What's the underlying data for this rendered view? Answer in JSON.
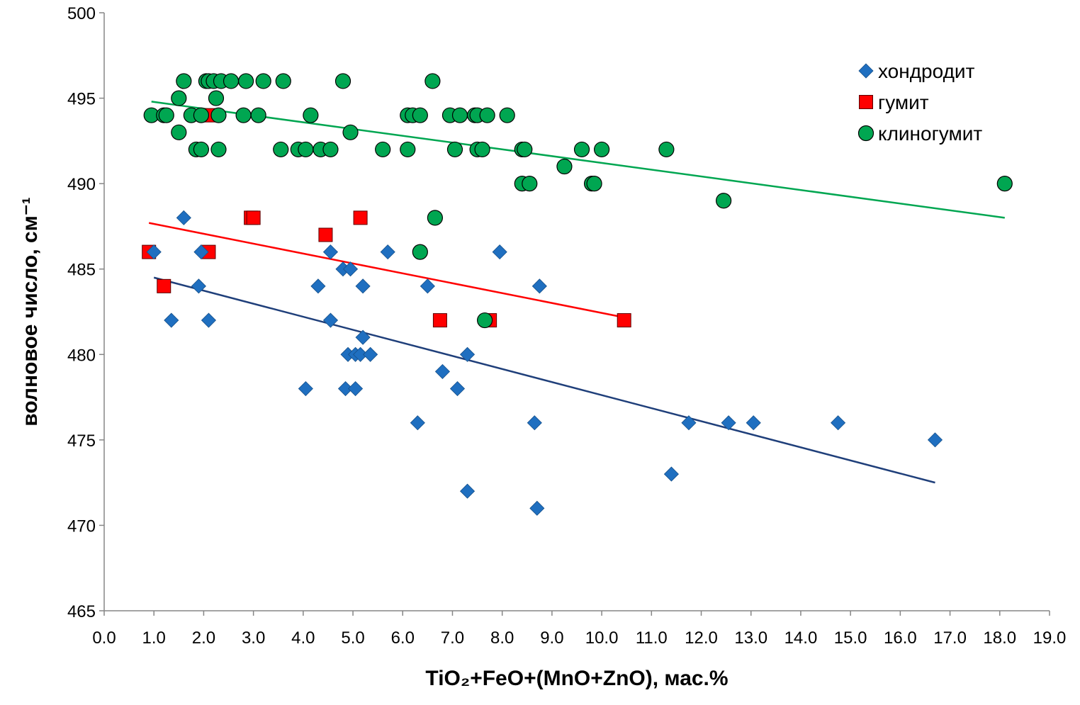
{
  "chart_data": {
    "type": "scatter",
    "xlabel": "TiO₂+FeO+(MnO+ZnO), мас.%",
    "ylabel": "волновое число, см⁻¹",
    "xlim": [
      0,
      19
    ],
    "ylim": [
      465,
      500
    ],
    "x_ticks": [
      "0.0",
      "1.0",
      "2.0",
      "3.0",
      "4.0",
      "5.0",
      "6.0",
      "7.0",
      "8.0",
      "9.0",
      "10.0",
      "11.0",
      "12.0",
      "13.0",
      "14.0",
      "15.0",
      "16.0",
      "17.0",
      "18.0",
      "19.0"
    ],
    "y_ticks": [
      "465",
      "470",
      "475",
      "480",
      "485",
      "490",
      "495",
      "500"
    ],
    "grid": false,
    "legend_position": "top-right",
    "series": [
      {
        "name": "хондродит",
        "marker": "diamond",
        "color": "#1F6FC0",
        "trend_color": "#1F3F7A",
        "trend": [
          [
            1.0,
            484.5
          ],
          [
            16.7,
            472.5
          ]
        ],
        "points": [
          [
            1.0,
            486
          ],
          [
            1.6,
            488
          ],
          [
            1.9,
            484
          ],
          [
            1.95,
            486
          ],
          [
            2.1,
            482
          ],
          [
            1.35,
            482
          ],
          [
            4.05,
            478
          ],
          [
            4.3,
            484
          ],
          [
            4.55,
            486
          ],
          [
            4.55,
            482
          ],
          [
            4.8,
            485
          ],
          [
            4.95,
            485
          ],
          [
            4.85,
            478
          ],
          [
            4.9,
            480
          ],
          [
            5.05,
            480
          ],
          [
            5.05,
            478
          ],
          [
            5.15,
            480
          ],
          [
            5.2,
            481
          ],
          [
            5.2,
            484
          ],
          [
            5.35,
            480
          ],
          [
            5.7,
            486
          ],
          [
            6.3,
            476
          ],
          [
            6.5,
            484
          ],
          [
            6.8,
            479
          ],
          [
            7.1,
            478
          ],
          [
            7.3,
            480
          ],
          [
            7.3,
            472
          ],
          [
            7.95,
            486
          ],
          [
            8.65,
            476
          ],
          [
            8.75,
            484
          ],
          [
            8.7,
            471
          ],
          [
            11.4,
            473
          ],
          [
            11.75,
            476
          ],
          [
            12.55,
            476
          ],
          [
            13.05,
            476
          ],
          [
            14.75,
            476
          ],
          [
            16.7,
            475
          ]
        ]
      },
      {
        "name": "гумит",
        "marker": "square",
        "color": "#FF0000",
        "trend_color": "#FF0000",
        "trend": [
          [
            0.9,
            487.7
          ],
          [
            10.4,
            482.2
          ]
        ],
        "points": [
          [
            0.9,
            486
          ],
          [
            1.2,
            484
          ],
          [
            2.1,
            486
          ],
          [
            2.15,
            494
          ],
          [
            2.95,
            488
          ],
          [
            3.0,
            488
          ],
          [
            4.45,
            487
          ],
          [
            5.15,
            488
          ],
          [
            6.75,
            482
          ],
          [
            7.75,
            482
          ],
          [
            10.45,
            482
          ]
        ]
      },
      {
        "name": "клиногумит",
        "marker": "circle",
        "color": "#00A651",
        "trend_color": "#00A651",
        "trend": [
          [
            0.95,
            494.8
          ],
          [
            18.1,
            488.0
          ]
        ],
        "points": [
          [
            0.95,
            494
          ],
          [
            1.2,
            494
          ],
          [
            1.25,
            494
          ],
          [
            1.5,
            495
          ],
          [
            1.5,
            493
          ],
          [
            1.6,
            496
          ],
          [
            1.75,
            494
          ],
          [
            1.85,
            492
          ],
          [
            1.95,
            492
          ],
          [
            1.95,
            494
          ],
          [
            2.05,
            496
          ],
          [
            2.1,
            496
          ],
          [
            2.2,
            496
          ],
          [
            2.25,
            495
          ],
          [
            2.3,
            494
          ],
          [
            2.3,
            492
          ],
          [
            2.35,
            496
          ],
          [
            2.55,
            496
          ],
          [
            2.8,
            494
          ],
          [
            2.85,
            496
          ],
          [
            3.1,
            494
          ],
          [
            3.2,
            496
          ],
          [
            3.55,
            492
          ],
          [
            3.6,
            496
          ],
          [
            3.9,
            492
          ],
          [
            4.05,
            492
          ],
          [
            4.15,
            494
          ],
          [
            4.35,
            492
          ],
          [
            4.55,
            492
          ],
          [
            4.8,
            496
          ],
          [
            4.95,
            493
          ],
          [
            5.6,
            492
          ],
          [
            6.1,
            494
          ],
          [
            6.1,
            492
          ],
          [
            6.2,
            494
          ],
          [
            6.35,
            494
          ],
          [
            6.35,
            486
          ],
          [
            6.6,
            496
          ],
          [
            6.65,
            488
          ],
          [
            6.95,
            494
          ],
          [
            7.05,
            492
          ],
          [
            7.15,
            494
          ],
          [
            7.45,
            494
          ],
          [
            7.5,
            494
          ],
          [
            7.5,
            492
          ],
          [
            7.6,
            492
          ],
          [
            7.65,
            482
          ],
          [
            7.7,
            494
          ],
          [
            8.1,
            494
          ],
          [
            8.4,
            492
          ],
          [
            8.4,
            490
          ],
          [
            8.45,
            492
          ],
          [
            8.55,
            490
          ],
          [
            9.25,
            491
          ],
          [
            9.6,
            492
          ],
          [
            9.8,
            490
          ],
          [
            9.85,
            490
          ],
          [
            10.0,
            492
          ],
          [
            11.3,
            492
          ],
          [
            12.45,
            489
          ],
          [
            18.1,
            490
          ]
        ]
      }
    ]
  }
}
